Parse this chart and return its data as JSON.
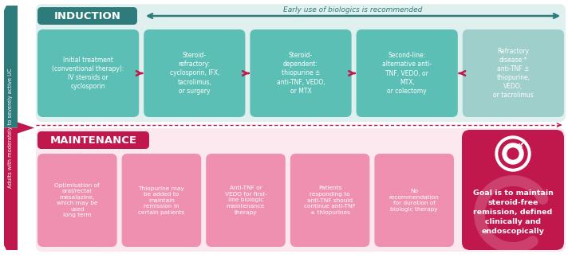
{
  "bg_color": "#ffffff",
  "top_section_bg": "#dff0ef",
  "bottom_section_bg": "#fce8ef",
  "induction_header_color": "#2d7b7b",
  "induction_header_text": "INDUCTION",
  "maintenance_header_color": "#c0174d",
  "maintenance_header_text": "MAINTENANCE",
  "side_label_color": "#c0174d",
  "side_label_text": "Adults with moderately to severely active UC",
  "arrow_text": "Early use of biologics is recommended",
  "arrow_color": "#2d7b7b",
  "dotted_arrow_color": "#c0174d",
  "induction_boxes": [
    {
      "text": "Initial treatment\n(conventional therapy):\nIV steroids or\ncyclosporin",
      "color": "#5bbfb5"
    },
    {
      "text": "Steroid-\nrefractory:\ncyclosporin, IFX,\ntacrolimus,\nor surgery",
      "color": "#5bbfb5"
    },
    {
      "text": "Steroid-\ndependent:\nthiopurine ±\nanti-TNF, VEDO,\nor MTX",
      "color": "#5bbfb5"
    },
    {
      "text": "Second-line:\nalternative anti-\nTNF, VEDO, or\nMTX,\nor colectomy",
      "color": "#5bbfb5"
    },
    {
      "text": "Refractory\ndisease:*\nanti-TNF ±\nthiopurine,\nVEDO,\nor tacrolimus",
      "color": "#9ecfca"
    }
  ],
  "maintenance_boxes": [
    {
      "text": "Optimisation of\noral/rectal\nmesalazine,\nwhich may be\nused\nlong term",
      "color": "#f090b0"
    },
    {
      "text": "Thiopurine may\nbe added to\nmaintain\nremission in\ncertain patients",
      "color": "#f090b0"
    },
    {
      "text": "Anti-TNF or\nVEDO for first-\nline biologic\nmaintenance\ntherapy",
      "color": "#f090b0"
    },
    {
      "text": "Patients\nresponding to\nanti-TNF should\ncontinue anti-TNF\n± thiopurines",
      "color": "#f090b0"
    },
    {
      "text": "No\nrecommendation\nfor duration of\nbiologic therapy",
      "color": "#f090b0"
    }
  ],
  "goal_box_color": "#c0174d",
  "goal_box_text": "Goal is to maintain\nsteroid-free\nremission, defined\nclinically and\nendoscopically"
}
